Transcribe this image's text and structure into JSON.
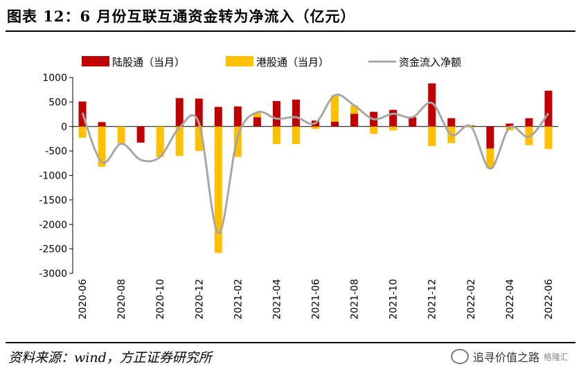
{
  "header": {
    "title": "图表 12：6 月份互联互通资金转为净流入（亿元）"
  },
  "footer": {
    "source": "资料来源：wind，方正证券研究所",
    "watermark": "追寻价值之路",
    "logo": "格隆汇"
  },
  "colors": {
    "northbound": "#C00000",
    "southbound": "#FFC000",
    "net": "#A6A6A6"
  },
  "chart_data": {
    "type": "bar",
    "categories": [
      "2020-06",
      "2020-07",
      "2020-08",
      "2020-09",
      "2020-10",
      "2020-11",
      "2020-12",
      "2021-01",
      "2021-02",
      "2021-03",
      "2021-04",
      "2021-05",
      "2021-06",
      "2021-07",
      "2021-08",
      "2021-09",
      "2021-10",
      "2021-11",
      "2021-12",
      "2022-01",
      "2022-02",
      "2022-03",
      "2022-04",
      "2022-05",
      "2022-06"
    ],
    "tick_labels": [
      "2020-06",
      "2020-08",
      "2020-10",
      "2020-12",
      "2021-02",
      "2021-04",
      "2021-06",
      "2021-08",
      "2021-10",
      "2021-12",
      "2022-02",
      "2022-04",
      "2022-06"
    ],
    "series": [
      {
        "name": "陆股通（当月）",
        "values": [
          510,
          90,
          0,
          -330,
          0,
          580,
          570,
          400,
          410,
          190,
          520,
          550,
          120,
          100,
          260,
          300,
          340,
          190,
          880,
          170,
          20,
          -450,
          60,
          170,
          730
        ]
      },
      {
        "name": "港股通（当月）",
        "values": [
          -230,
          -820,
          -350,
          0,
          -620,
          -600,
          -500,
          -2580,
          -620,
          100,
          -360,
          -360,
          -50,
          540,
          170,
          -150,
          -80,
          0,
          -400,
          -340,
          -20,
          -410,
          -80,
          -380,
          -460
        ]
      },
      {
        "name": "资金流入净额",
        "type": "line",
        "values": [
          280,
          -730,
          -350,
          -680,
          -620,
          -20,
          70,
          -2180,
          -210,
          290,
          160,
          190,
          70,
          640,
          430,
          150,
          260,
          190,
          480,
          -170,
          0,
          -860,
          -20,
          -210,
          270
        ]
      }
    ],
    "ylim": [
      -3000,
      1000
    ],
    "yticks": [
      1000,
      500,
      0,
      -500,
      -1000,
      -1500,
      -2000,
      -2500,
      -3000
    ],
    "legend_position": "top",
    "grid": false
  }
}
